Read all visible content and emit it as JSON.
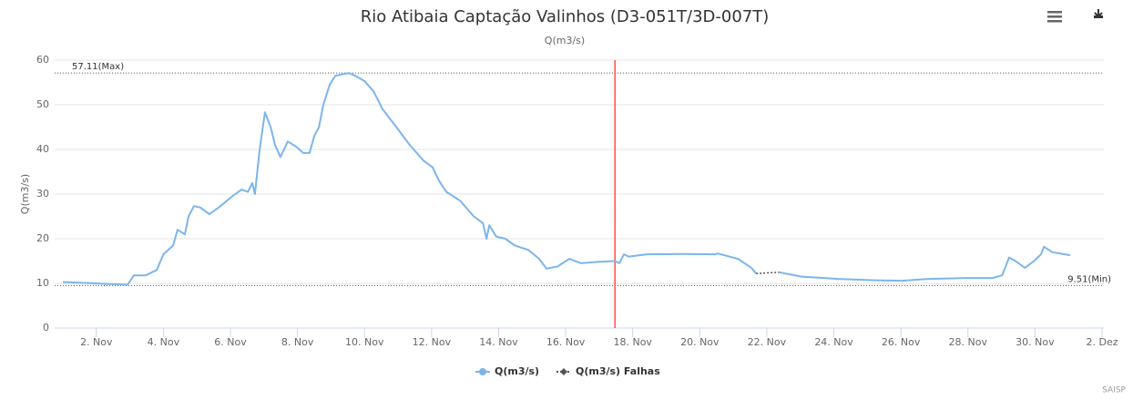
{
  "chart_data": {
    "type": "line",
    "title": "Rio Atibaia Captação Valinhos (D3-051T/3D-007T)",
    "subtitle": "Q(m3/s)",
    "y_label": "Q(m3/s)",
    "credits": "SAISP",
    "xlim": [
      1,
      32
    ],
    "xticks": [
      {
        "value": 2,
        "label": "2. Nov"
      },
      {
        "value": 4,
        "label": "4. Nov"
      },
      {
        "value": 6,
        "label": "6. Nov"
      },
      {
        "value": 8,
        "label": "8. Nov"
      },
      {
        "value": 10,
        "label": "10. Nov"
      },
      {
        "value": 12,
        "label": "12. Nov"
      },
      {
        "value": 14,
        "label": "14. Nov"
      },
      {
        "value": 16,
        "label": "16. Nov"
      },
      {
        "value": 18,
        "label": "18. Nov"
      },
      {
        "value": 20,
        "label": "20. Nov"
      },
      {
        "value": 22,
        "label": "22. Nov"
      },
      {
        "value": 24,
        "label": "24. Nov"
      },
      {
        "value": 26,
        "label": "26. Nov"
      },
      {
        "value": 28,
        "label": "28. Nov"
      },
      {
        "value": 30,
        "label": "30. Nov"
      },
      {
        "value": 32,
        "label": "2. Dez"
      }
    ],
    "ylim": [
      0,
      60
    ],
    "yticks": [
      0,
      10,
      20,
      30,
      40,
      50,
      60
    ],
    "grid": true,
    "legend": "bottom",
    "plot_lines": [
      {
        "value": 57.11,
        "label": "57.11(Max)"
      },
      {
        "value": 9.51,
        "label": "9.51(Min)"
      }
    ],
    "vertical_line": {
      "value": 17.47,
      "color": "#ff4d4d"
    },
    "series": [
      {
        "name": "Q(m3/s)",
        "color": "#7cb5ec",
        "x": [
          1.0,
          2.93,
          3.12,
          3.47,
          3.8,
          4.0,
          4.29,
          4.42,
          4.64,
          4.75,
          4.91,
          5.1,
          5.37,
          5.65,
          6.05,
          6.33,
          6.52,
          6.65,
          6.73,
          6.87,
          7.03,
          7.2,
          7.33,
          7.49,
          7.71,
          7.98,
          8.17,
          8.36,
          8.5,
          8.64,
          8.77,
          8.96,
          9.13,
          9.32,
          9.53,
          9.72,
          10.0,
          10.27,
          10.54,
          10.95,
          11.35,
          11.76,
          12.03,
          12.22,
          12.44,
          12.85,
          13.26,
          13.53,
          13.64,
          13.72,
          13.93,
          14.2,
          14.48,
          14.89,
          15.21,
          15.43,
          15.76,
          16.11,
          16.46,
          16.92,
          17.47,
          17.6,
          17.74,
          17.88,
          18.42,
          19.51,
          20.46,
          20.54,
          21.14,
          21.54,
          21.68,
          22.0,
          22.36,
          23.04,
          24.13,
          25.21,
          26.03,
          26.84,
          27.93,
          28.74,
          29.02,
          29.23,
          29.42,
          29.7,
          29.97,
          30.18,
          30.27,
          30.51,
          31.05
        ],
        "values": [
          10.3,
          9.7,
          11.8,
          11.8,
          13,
          16.5,
          18.5,
          22,
          21,
          25,
          27.3,
          27,
          25.5,
          27,
          29.5,
          31,
          30.5,
          32.5,
          30,
          40,
          48.3,
          45,
          41,
          38.3,
          41.8,
          40.5,
          39.2,
          39.2,
          43,
          45,
          50,
          54.5,
          56.5,
          56.8,
          57.11,
          56.5,
          55.3,
          53,
          49,
          45,
          41,
          37.5,
          36,
          33,
          30.5,
          28.5,
          25,
          23.5,
          20,
          23,
          20.5,
          20,
          18.5,
          17.5,
          15.5,
          13.3,
          13.8,
          15.5,
          14.5,
          14.8,
          15,
          14.5,
          16.5,
          16,
          16.5,
          16.6,
          16.5,
          16.7,
          15.5,
          13.5,
          12.2,
          null,
          12.5,
          11.5,
          11,
          10.7,
          10.6,
          11,
          11.2,
          11.2,
          11.8,
          15.8,
          15,
          13.5,
          15,
          16.5,
          18.2,
          17,
          16.3
        ]
      },
      {
        "name": "Q(m3/s) Falhas",
        "color": "#555555",
        "dashed": true,
        "x": [
          21.68,
          22.36
        ],
        "values": [
          12.2,
          12.5
        ]
      }
    ]
  }
}
